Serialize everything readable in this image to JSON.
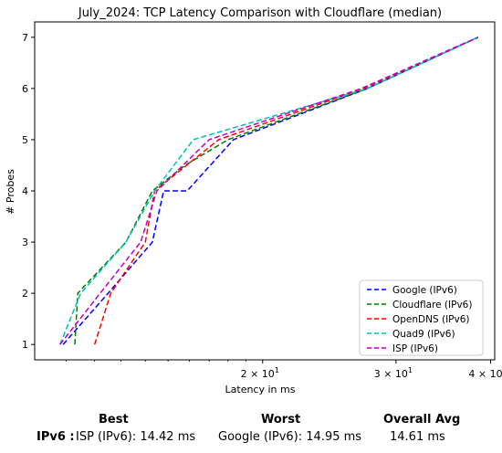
{
  "chart_data": {
    "type": "line",
    "title": "July_2024: TCP Latency Comparison with Cloudflare (median)",
    "xlabel": "Latency in ms",
    "ylabel": "# Probes",
    "xscale": "log",
    "xlim": [
      10.0,
      40.5
    ],
    "ylim": [
      0.7,
      7.3
    ],
    "xticks": [
      {
        "value": 20,
        "label": "2 × 10",
        "exp": "1"
      },
      {
        "value": 30,
        "label": "3 × 10",
        "exp": "1"
      },
      {
        "value": 40,
        "label": "4 × 10",
        "exp": "1"
      }
    ],
    "yticks": [
      1,
      2,
      3,
      4,
      5,
      6,
      7
    ],
    "grid": false,
    "legend_position": "lower right",
    "series": [
      {
        "name": "Google (IPv6)",
        "color": "#0000ff",
        "points": [
          [
            10.9,
            1
          ],
          [
            12.5,
            2
          ],
          [
            14.3,
            3
          ],
          [
            14.8,
            4
          ],
          [
            15.9,
            4
          ],
          [
            18.3,
            5
          ],
          [
            27.5,
            6
          ],
          [
            38.5,
            7
          ]
        ]
      },
      {
        "name": "Cloudflare (IPv6)",
        "color": "#008000",
        "points": [
          [
            11.3,
            1
          ],
          [
            11.4,
            2
          ],
          [
            13.2,
            3
          ],
          [
            14.3,
            4
          ],
          [
            15.8,
            4.5
          ],
          [
            18.0,
            5
          ],
          [
            27.5,
            6
          ],
          [
            38.5,
            7
          ]
        ]
      },
      {
        "name": "OpenDNS (IPv6)",
        "color": "#ff0000",
        "points": [
          [
            12.0,
            1
          ],
          [
            12.6,
            2
          ],
          [
            14.0,
            3
          ],
          [
            14.4,
            4
          ],
          [
            17.5,
            5
          ],
          [
            27.2,
            6
          ],
          [
            38.5,
            7
          ]
        ]
      },
      {
        "name": "Quad9 (IPv6)",
        "color": "#00bfbf",
        "points": [
          [
            10.8,
            1
          ],
          [
            11.5,
            2
          ],
          [
            13.2,
            3
          ],
          [
            14.4,
            4
          ],
          [
            16.2,
            5
          ],
          [
            27.5,
            6
          ],
          [
            38.5,
            7
          ]
        ]
      },
      {
        "name": "ISP (IPv6)",
        "color": "#bf00bf",
        "points": [
          [
            10.8,
            1
          ],
          [
            12.2,
            2
          ],
          [
            13.8,
            3
          ],
          [
            14.5,
            4
          ],
          [
            17.0,
            5
          ],
          [
            27.0,
            6
          ],
          [
            38.5,
            7
          ]
        ]
      }
    ]
  },
  "summary": {
    "headers": {
      "best": "Best",
      "worst": "Worst",
      "avg": "Overall Avg"
    },
    "row_label": "IPv6 :",
    "best": "ISP (IPv6): 14.42 ms",
    "worst": "Google (IPv6): 14.95 ms",
    "avg": "14.61 ms"
  }
}
